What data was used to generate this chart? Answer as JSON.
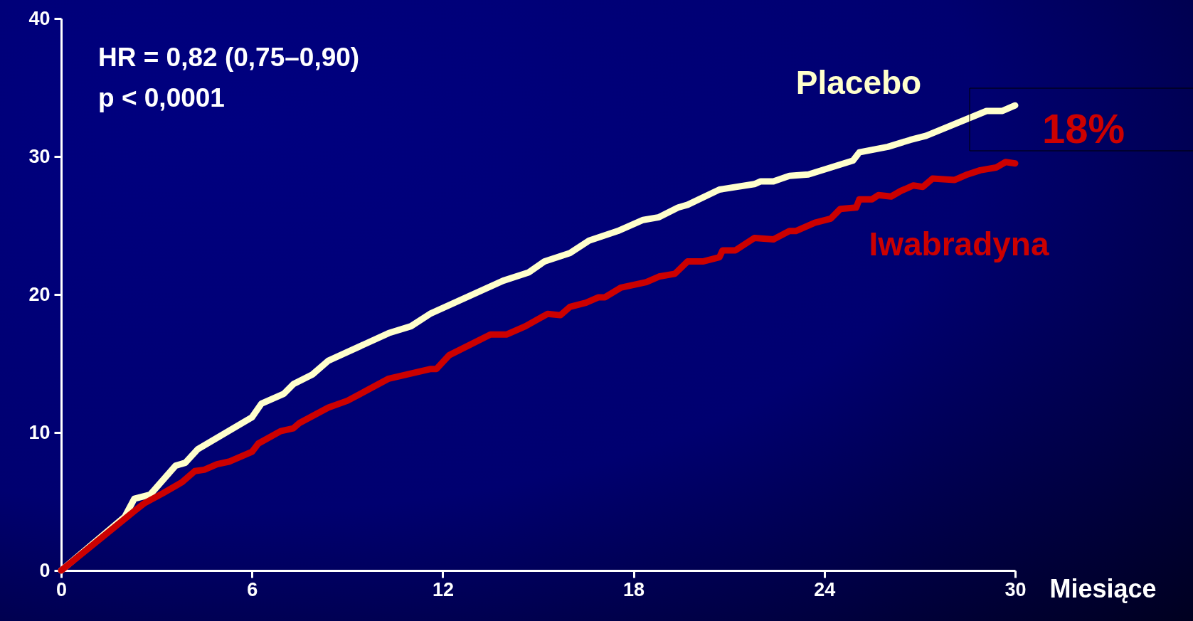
{
  "chart_data": {
    "type": "line",
    "xlabel": "Miesiące",
    "xlim": [
      0,
      30
    ],
    "xticks": [
      0,
      6,
      12,
      18,
      24,
      30
    ],
    "ylim": [
      0,
      40
    ],
    "yticks": [
      0,
      10,
      20,
      30,
      40
    ],
    "grid": false,
    "legend": false,
    "marker": "none",
    "line_style": "solid",
    "annotations": [
      "HR = 0,82 (0,75–0,90)",
      "p < 0,0001",
      "18%"
    ],
    "series": [
      {
        "name": "Placebo",
        "color": "#ffffcc",
        "x": [
          0,
          2.0,
          2.3,
          2.8,
          3.6,
          3.9,
          4.3,
          6.0,
          6.3,
          7.0,
          7.3,
          7.9,
          8.4,
          10.3,
          11.0,
          11.6,
          13.9,
          14.7,
          15.2,
          16.0,
          16.6,
          17.5,
          18.3,
          18.8,
          19.4,
          19.7,
          20.7,
          21.8,
          22.0,
          22.4,
          22.9,
          23.5,
          24.9,
          25.1,
          26.0,
          26.7,
          27.2,
          29.1,
          29.6,
          30
        ],
        "values": [
          0,
          3.9,
          5.2,
          5.5,
          7.6,
          7.8,
          8.8,
          11.1,
          12.1,
          12.8,
          13.5,
          14.2,
          15.2,
          17.2,
          17.7,
          18.6,
          21.0,
          21.6,
          22.4,
          23.0,
          23.9,
          24.6,
          25.4,
          25.6,
          26.3,
          26.5,
          27.6,
          28.0,
          28.2,
          28.2,
          28.6,
          28.7,
          29.7,
          30.3,
          30.7,
          31.2,
          31.5,
          33.3,
          33.3,
          33.7
        ]
      },
      {
        "name": "Iwabradyna",
        "color": "#cc0000",
        "x": [
          0,
          2.3,
          2.6,
          3.2,
          3.8,
          4.2,
          4.5,
          4.9,
          5.3,
          6.0,
          6.2,
          6.9,
          7.3,
          7.5,
          8.4,
          9.0,
          10.3,
          11.6,
          11.8,
          12.2,
          13.5,
          14.0,
          14.6,
          15.3,
          15.7,
          16.0,
          16.5,
          16.9,
          17.1,
          17.6,
          18.4,
          18.8,
          19.3,
          19.7,
          20.2,
          20.7,
          20.8,
          21.2,
          21.8,
          22.4,
          22.9,
          23.1,
          23.7,
          24.2,
          24.5,
          25.0,
          25.1,
          25.5,
          25.7,
          26.1,
          26.4,
          26.8,
          27.1,
          27.4,
          28.1,
          28.5,
          28.9,
          29.4,
          29.7,
          30
        ],
        "values": [
          0,
          4.3,
          4.85,
          5.6,
          6.4,
          7.2,
          7.3,
          7.7,
          7.9,
          8.6,
          9.2,
          10.1,
          10.3,
          10.7,
          11.8,
          12.3,
          13.9,
          14.6,
          14.6,
          15.6,
          17.1,
          17.1,
          17.7,
          18.6,
          18.5,
          19.1,
          19.4,
          19.8,
          19.8,
          20.5,
          20.9,
          21.3,
          21.5,
          22.4,
          22.4,
          22.7,
          23.2,
          23.2,
          24.1,
          24.0,
          24.6,
          24.6,
          25.2,
          25.5,
          26.2,
          26.3,
          26.9,
          26.9,
          27.2,
          27.1,
          27.5,
          27.9,
          27.8,
          28.4,
          28.3,
          28.7,
          29.0,
          29.2,
          29.6,
          29.5
        ]
      }
    ]
  }
}
